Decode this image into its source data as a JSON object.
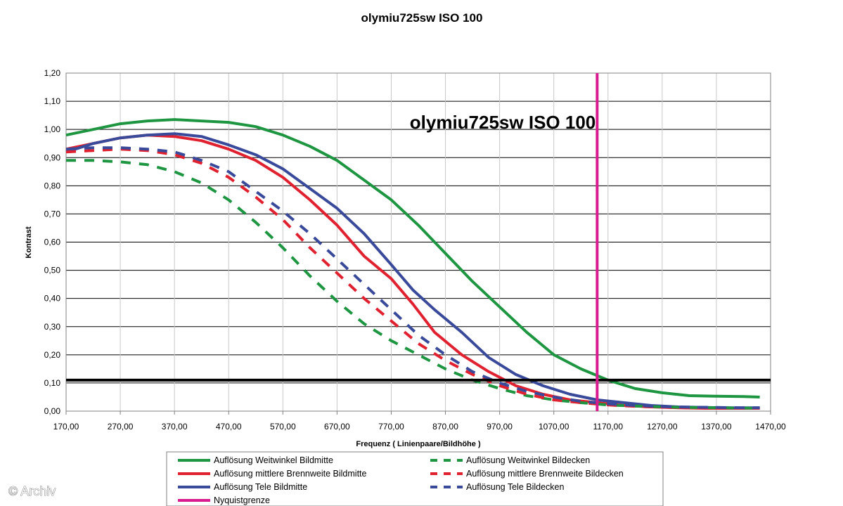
{
  "chart_data": {
    "type": "line",
    "title": "olymiu725sw ISO 100",
    "inner_title": "olymiu725sw ISO 100",
    "xlabel": "Frequenz ( Linienpaare/Bildhöhe )",
    "ylabel": "Kontrast",
    "xlim": [
      170,
      1470
    ],
    "ylim": [
      0,
      1.2
    ],
    "grid": true,
    "legend_position": "bottom",
    "x_ticks": [
      "170,00",
      "270,00",
      "370,00",
      "470,00",
      "570,00",
      "670,00",
      "770,00",
      "870,00",
      "970,00",
      "1070,00",
      "1170,00",
      "1270,00",
      "1370,00",
      "1470,00"
    ],
    "y_ticks": [
      "0,00",
      "0,10",
      "0,20",
      "0,30",
      "0,40",
      "0,50",
      "0,60",
      "0,70",
      "0,80",
      "0,90",
      "1,00",
      "1,10",
      "1,20"
    ],
    "threshold_y": 0.11,
    "nyquist_x": 1150,
    "series": [
      {
        "name": "Auflösung Weitwinkel Bildmitte",
        "color": "#1e9641",
        "dash": "solid",
        "x": [
          170,
          220,
          270,
          320,
          370,
          420,
          470,
          520,
          570,
          620,
          670,
          720,
          770,
          820,
          870,
          920,
          970,
          1020,
          1070,
          1120,
          1170,
          1220,
          1270,
          1320,
          1370,
          1420,
          1450
        ],
        "y": [
          0.98,
          1.0,
          1.02,
          1.03,
          1.035,
          1.03,
          1.025,
          1.01,
          0.98,
          0.94,
          0.89,
          0.82,
          0.75,
          0.66,
          0.56,
          0.46,
          0.37,
          0.28,
          0.2,
          0.15,
          0.11,
          0.08,
          0.065,
          0.055,
          0.053,
          0.052,
          0.05
        ]
      },
      {
        "name": "Auflösung mittlere Brennweite Bildmitte",
        "color": "#e02130",
        "dash": "solid",
        "x": [
          170,
          220,
          270,
          320,
          370,
          420,
          470,
          520,
          570,
          620,
          670,
          720,
          770,
          810,
          850,
          900,
          950,
          1000,
          1050,
          1100,
          1150,
          1200,
          1250,
          1300,
          1350,
          1400,
          1450
        ],
        "y": [
          0.93,
          0.95,
          0.97,
          0.98,
          0.975,
          0.96,
          0.93,
          0.89,
          0.83,
          0.75,
          0.66,
          0.55,
          0.47,
          0.38,
          0.28,
          0.2,
          0.14,
          0.09,
          0.06,
          0.04,
          0.03,
          0.02,
          0.015,
          0.012,
          0.01,
          0.01,
          0.01
        ]
      },
      {
        "name": "Auflösung Tele Bildmitte",
        "color": "#3a4a9a",
        "dash": "solid",
        "x": [
          170,
          220,
          270,
          320,
          370,
          420,
          470,
          520,
          570,
          620,
          670,
          720,
          770,
          810,
          850,
          900,
          950,
          1000,
          1050,
          1100,
          1150,
          1200,
          1250,
          1300,
          1350,
          1400,
          1450
        ],
        "y": [
          0.92,
          0.95,
          0.97,
          0.98,
          0.985,
          0.975,
          0.945,
          0.91,
          0.86,
          0.79,
          0.72,
          0.63,
          0.52,
          0.43,
          0.36,
          0.28,
          0.19,
          0.13,
          0.09,
          0.06,
          0.04,
          0.03,
          0.02,
          0.015,
          0.013,
          0.012,
          0.012
        ]
      },
      {
        "name": "Auflösung Weitwinkel Bildecken",
        "color": "#1e9641",
        "dash": "dashed",
        "x": [
          170,
          220,
          270,
          320,
          370,
          420,
          470,
          520,
          570,
          620,
          670,
          720,
          770,
          820,
          870,
          920,
          970,
          1020,
          1070,
          1120,
          1170,
          1220,
          1270,
          1320,
          1370,
          1420,
          1450
        ],
        "y": [
          0.89,
          0.89,
          0.885,
          0.875,
          0.85,
          0.81,
          0.75,
          0.67,
          0.58,
          0.48,
          0.39,
          0.31,
          0.25,
          0.2,
          0.15,
          0.11,
          0.08,
          0.055,
          0.04,
          0.03,
          0.022,
          0.018,
          0.015,
          0.013,
          0.012,
          0.011,
          0.01
        ]
      },
      {
        "name": "Auflösung mittlere Brennweite Bildecken",
        "color": "#e02130",
        "dash": "dashed",
        "x": [
          170,
          220,
          270,
          320,
          370,
          420,
          470,
          520,
          570,
          620,
          670,
          720,
          770,
          820,
          870,
          920,
          970,
          1020,
          1070,
          1120,
          1170,
          1220,
          1270,
          1320,
          1370,
          1420,
          1450
        ],
        "y": [
          0.92,
          0.925,
          0.93,
          0.925,
          0.91,
          0.88,
          0.83,
          0.76,
          0.68,
          0.58,
          0.49,
          0.4,
          0.32,
          0.24,
          0.18,
          0.13,
          0.09,
          0.06,
          0.04,
          0.03,
          0.022,
          0.017,
          0.014,
          0.012,
          0.011,
          0.01,
          0.01
        ]
      },
      {
        "name": "Auflösung Tele Bildecken",
        "color": "#3a4a9a",
        "dash": "dashed",
        "x": [
          170,
          220,
          270,
          320,
          370,
          420,
          470,
          520,
          570,
          620,
          670,
          720,
          770,
          820,
          870,
          920,
          970,
          1020,
          1070,
          1120,
          1170,
          1220,
          1270,
          1320,
          1370,
          1420,
          1450
        ],
        "y": [
          0.93,
          0.935,
          0.935,
          0.93,
          0.92,
          0.89,
          0.85,
          0.78,
          0.71,
          0.63,
          0.54,
          0.45,
          0.36,
          0.27,
          0.2,
          0.14,
          0.1,
          0.07,
          0.05,
          0.035,
          0.026,
          0.02,
          0.016,
          0.014,
          0.013,
          0.012,
          0.012
        ]
      },
      {
        "name": "Nyquistgrenze",
        "color": "#d81b8f",
        "dash": "solid",
        "x": [
          1150,
          1150
        ],
        "y": [
          0,
          1.2
        ]
      }
    ]
  },
  "legend": [
    {
      "label": "Auflösung Weitwinkel Bildmitte",
      "color": "#1e9641",
      "dash": "solid"
    },
    {
      "label": "Auflösung Weitwinkel Bildecken",
      "color": "#1e9641",
      "dash": "dashed"
    },
    {
      "label": "Auflösung mittlere Brennweite Bildmitte",
      "color": "#e02130",
      "dash": "solid"
    },
    {
      "label": "Auflösung mittlere Brennweite Bildecken",
      "color": "#e02130",
      "dash": "dashed"
    },
    {
      "label": "Auflösung Tele Bildmitte",
      "color": "#3a4a9a",
      "dash": "solid"
    },
    {
      "label": "Auflösung Tele Bildecken",
      "color": "#3a4a9a",
      "dash": "dashed"
    },
    {
      "label": "Nyquistgrenze",
      "color": "#d81b8f",
      "dash": "solid"
    }
  ],
  "credit": "© Archiv"
}
